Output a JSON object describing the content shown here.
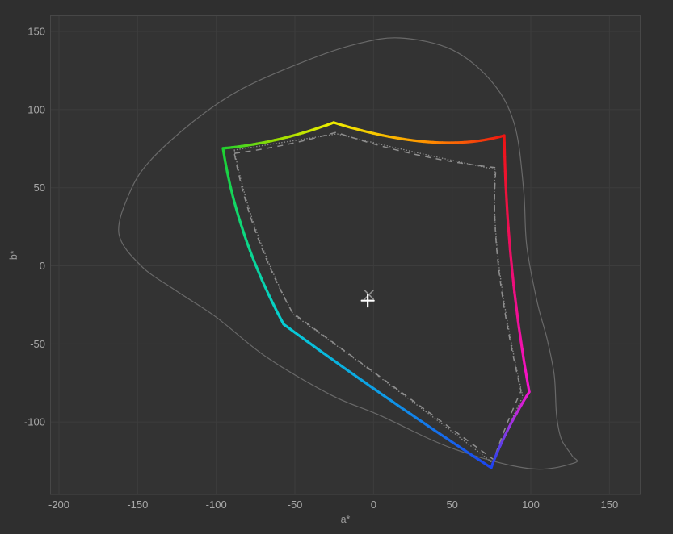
{
  "chart_data": {
    "type": "line",
    "title": "",
    "xlabel": "a*",
    "ylabel": "b*",
    "xlim": [
      -205.4,
      169.6
    ],
    "ylim": [
      -146.4,
      160.1
    ],
    "x_ticks": [
      -200,
      -150,
      -100,
      -50,
      0,
      50,
      100,
      150
    ],
    "y_ticks": [
      150,
      100,
      50,
      0,
      -50,
      -100
    ],
    "grid": true,
    "legend": "none",
    "series": [
      {
        "name": "measured-color-gamut",
        "style": "solid-multicolor",
        "line_width": 3.2,
        "vertices": [
          {
            "label": "green",
            "a": -95.7,
            "b": 75.2,
            "color": "#1fd12f"
          },
          {
            "label": "yellow",
            "a": -25.3,
            "b": 91.7,
            "color": "#f0ee00"
          },
          {
            "label": "red",
            "a": 83.1,
            "b": 83.4,
            "color": "#ee1511"
          },
          {
            "label": "magenta",
            "a": 99.0,
            "b": -80.7,
            "color": "#f513cf"
          },
          {
            "label": "blue",
            "a": 74.8,
            "b": -129.3,
            "color": "#1c43ef"
          },
          {
            "label": "cyan",
            "a": -57.2,
            "b": -37.4,
            "color": "#06ced6"
          }
        ],
        "edge_mids": [
          {
            "a": -60.8,
            "b": 80.9,
            "color": "#9add00"
          },
          {
            "a": 34.8,
            "b": 79.3,
            "color": "#ff9000"
          },
          {
            "a": 87.7,
            "b": 1.3,
            "color": "#ec0e6c"
          },
          {
            "a": 85.1,
            "b": -105.5,
            "color": "#8e3ae3"
          },
          {
            "a": 9.1,
            "b": -84.9,
            "color": "#0f97e6"
          },
          {
            "a": -81.8,
            "b": 18.9,
            "color": "#0cd983"
          }
        ]
      },
      {
        "name": "target-gamut-dashed",
        "style": "dashed",
        "color": "#8f8f8f",
        "line_width": 1.5,
        "vertices": [
          {
            "a": -88.5,
            "b": 72.0
          },
          {
            "a": -23.8,
            "b": 85.5
          },
          {
            "a": 77.9,
            "b": 62.8
          },
          {
            "a": 93.8,
            "b": -80.2
          },
          {
            "a": 76.4,
            "b": -124.1
          },
          {
            "a": -51.5,
            "b": -30.1
          }
        ],
        "edge_mids": [
          {
            "a": -56.1,
            "b": 77.5
          },
          {
            "a": 27.1,
            "b": 71.2
          },
          {
            "a": 79.4,
            "b": -0.2
          },
          {
            "a": 84.5,
            "b": -102.0
          },
          {
            "a": 13.0,
            "b": -77.5
          },
          {
            "a": -74.5,
            "b": 20.4
          }
        ]
      },
      {
        "name": "target-gamut-dotted",
        "style": "dotted",
        "color": "#8a8a8a",
        "line_width": 1.5,
        "vertices": [
          {
            "a": -88.5,
            "b": 74.1
          },
          {
            "a": -23.3,
            "b": 84.5
          },
          {
            "a": 77.4,
            "b": 61.7
          },
          {
            "a": 94.9,
            "b": -83.8
          },
          {
            "a": 75.8,
            "b": -126.2
          },
          {
            "a": -51.0,
            "b": -31.2
          }
        ],
        "edge_mids": [
          {
            "a": -55.9,
            "b": 79.3
          },
          {
            "a": 27.4,
            "b": 72.5
          },
          {
            "a": 79.9,
            "b": -1.0
          },
          {
            "a": 84.9,
            "b": -105.0
          },
          {
            "a": 13.5,
            "b": -78.5
          },
          {
            "a": -74.0,
            "b": 21.0
          }
        ]
      },
      {
        "name": "visible-spectrum-locus",
        "style": "solid",
        "color": "#6f6f6f",
        "line_width": 1.2,
        "points": [
          {
            "a": 16.8,
            "b": 145.9
          },
          {
            "a": 50.2,
            "b": 138.2
          },
          {
            "a": 75.9,
            "b": 117.0
          },
          {
            "a": 89.7,
            "b": 90.1
          },
          {
            "a": 95.4,
            "b": 48.8
          },
          {
            "a": 97.4,
            "b": 12.7
          },
          {
            "a": 104.1,
            "b": -23.4
          },
          {
            "a": 110.3,
            "b": -46.7
          },
          {
            "a": 114.9,
            "b": -69.9
          },
          {
            "a": 116.4,
            "b": -95.7
          },
          {
            "a": 119.5,
            "b": -111.2
          },
          {
            "a": 126.2,
            "b": -121.5
          },
          {
            "a": 127.7,
            "b": -126.2
          },
          {
            "a": 99.0,
            "b": -129.8
          },
          {
            "a": 50.2,
            "b": -116.9
          },
          {
            "a": 3.9,
            "b": -95.7
          },
          {
            "a": -26.9,
            "b": -82.8
          },
          {
            "a": -68.0,
            "b": -58.5
          },
          {
            "a": -100.3,
            "b": -32.7
          },
          {
            "a": -126.0,
            "b": -15.7
          },
          {
            "a": -147.6,
            "b": -0.2
          },
          {
            "a": -161.9,
            "b": 20.4
          },
          {
            "a": -155.3,
            "b": 46.3
          },
          {
            "a": -142.4,
            "b": 66.9
          },
          {
            "a": -114.2,
            "b": 92.7
          },
          {
            "a": -83.4,
            "b": 113.4
          },
          {
            "a": -42.3,
            "b": 131.5
          },
          {
            "a": -11.5,
            "b": 141.8
          }
        ]
      }
    ],
    "markers": [
      {
        "name": "white-point-target",
        "shape": "cross",
        "a": -2.9,
        "b": -18.5,
        "color": "#8f8f8f",
        "size": 5.5,
        "line_width": 1.6
      },
      {
        "name": "white-point-measured",
        "shape": "plus",
        "a": -3.7,
        "b": -22.3,
        "color": "#ffffff",
        "size": 7.5,
        "line_width": 2.2
      }
    ]
  },
  "colors": {
    "figure_background": "#2f2f2f",
    "plot_background": "#333333",
    "grid_line": "#3d3d3d",
    "plot_border": "#474747",
    "tick_label": "#a8a8a8",
    "axis_title": "#9c9c9c"
  }
}
